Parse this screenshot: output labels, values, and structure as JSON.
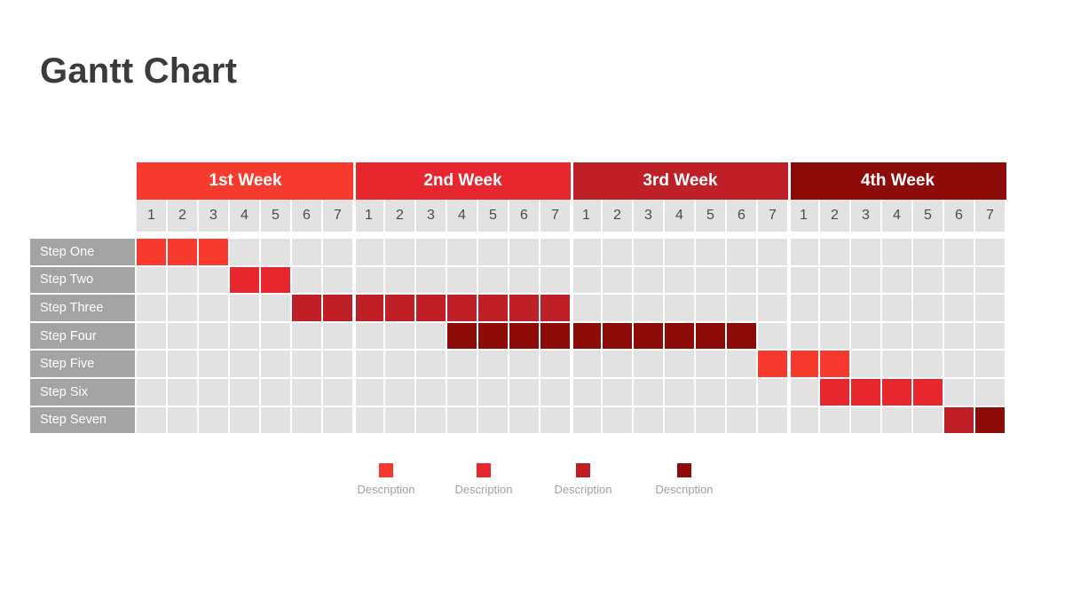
{
  "title": "Gantt Chart",
  "colors": {
    "grid_empty": "#e2e2e2",
    "label_bg": "#a3a3a3",
    "shades": [
      "#f73a2e",
      "#e8262e",
      "#bf1f26",
      "#8d0b08"
    ]
  },
  "chart_data": {
    "type": "gantt",
    "title": "Gantt Chart",
    "weeks": [
      "1st Week",
      "2nd Week",
      "3rd Week",
      "4th Week"
    ],
    "week_colors": [
      "#f73a2e",
      "#e8262e",
      "#bf1f26",
      "#8d0b08"
    ],
    "days": [
      "1",
      "2",
      "3",
      "4",
      "5",
      "6",
      "7"
    ],
    "tasks": [
      {
        "name": "Step One",
        "segments": [
          {
            "start_day": 1,
            "end_day": 3,
            "shade": 0
          }
        ]
      },
      {
        "name": "Step Two",
        "segments": [
          {
            "start_day": 4,
            "end_day": 5,
            "shade": 1
          }
        ]
      },
      {
        "name": "Step Three",
        "segments": [
          {
            "start_day": 6,
            "end_day": 14,
            "shade": 2
          }
        ]
      },
      {
        "name": "Step Four",
        "segments": [
          {
            "start_day": 11,
            "end_day": 20,
            "shade": 3
          }
        ]
      },
      {
        "name": "Step Five",
        "segments": [
          {
            "start_day": 21,
            "end_day": 23,
            "shade": 0
          }
        ]
      },
      {
        "name": "Step Six",
        "segments": [
          {
            "start_day": 23,
            "end_day": 26,
            "shade": 1
          }
        ]
      },
      {
        "name": "Step Seven",
        "segments": [
          {
            "start_day": 27,
            "end_day": 27,
            "shade": 2
          },
          {
            "start_day": 28,
            "end_day": 28,
            "shade": 3
          }
        ]
      }
    ],
    "legend": [
      {
        "label": "Description",
        "shade": 0
      },
      {
        "label": "Description",
        "shade": 1
      },
      {
        "label": "Description",
        "shade": 2
      },
      {
        "label": "Description",
        "shade": 3
      }
    ]
  }
}
